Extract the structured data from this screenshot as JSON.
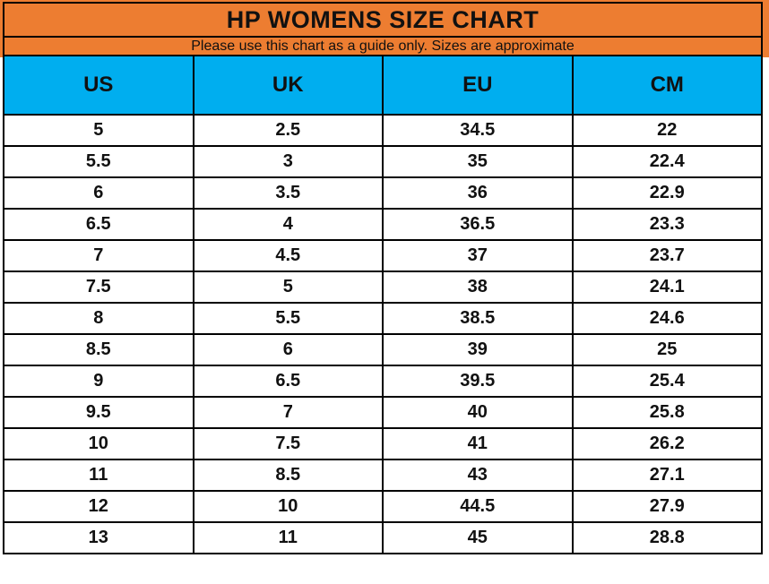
{
  "title": "HP WOMENS SIZE CHART",
  "subtitle": "Please use this chart as a guide only. Sizes are approximate",
  "colors": {
    "orange": "#ED7D31",
    "blue": "#00AEEF",
    "border": "#000000",
    "text": "#111111",
    "row_bg": "#FFFFFF"
  },
  "chart_data": {
    "type": "table",
    "title": "HP WOMENS SIZE CHART",
    "subtitle": "Please use this chart as a guide only. Sizes are approximate",
    "columns": [
      "US",
      "UK",
      "EU",
      "CM"
    ],
    "rows": [
      [
        "5",
        "2.5",
        "34.5",
        "22"
      ],
      [
        "5.5",
        "3",
        "35",
        "22.4"
      ],
      [
        "6",
        "3.5",
        "36",
        "22.9"
      ],
      [
        "6.5",
        "4",
        "36.5",
        "23.3"
      ],
      [
        "7",
        "4.5",
        "37",
        "23.7"
      ],
      [
        "7.5",
        "5",
        "38",
        "24.1"
      ],
      [
        "8",
        "5.5",
        "38.5",
        "24.6"
      ],
      [
        "8.5",
        "6",
        "39",
        "25"
      ],
      [
        "9",
        "6.5",
        "39.5",
        "25.4"
      ],
      [
        "9.5",
        "7",
        "40",
        "25.8"
      ],
      [
        "10",
        "7.5",
        "41",
        "26.2"
      ],
      [
        "11",
        "8.5",
        "43",
        "27.1"
      ],
      [
        "12",
        "10",
        "44.5",
        "27.9"
      ],
      [
        "13",
        "11",
        "45",
        "28.8"
      ]
    ]
  }
}
